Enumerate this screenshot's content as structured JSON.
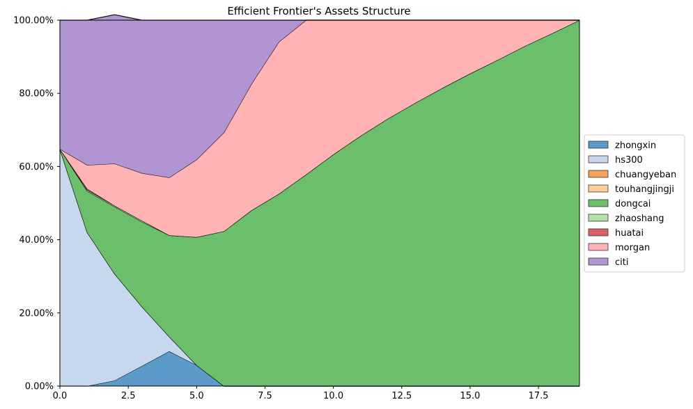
{
  "chart_data": {
    "type": "area",
    "stacked": true,
    "title": "Efficient Frontier's Assets Structure",
    "xlabel": "",
    "ylabel": "",
    "xlim": [
      0,
      19
    ],
    "ylim": [
      0,
      1
    ],
    "x_ticks": [
      0,
      2.5,
      5,
      7.5,
      10,
      12.5,
      15,
      17.5
    ],
    "x_tick_labels": [
      "0.0",
      "2.5",
      "5.0",
      "7.5",
      "10.0",
      "12.5",
      "15.0",
      "17.5"
    ],
    "y_ticks": [
      0,
      0.2,
      0.4,
      0.6,
      0.8,
      1.0
    ],
    "y_tick_labels": [
      "0.00%",
      "20.00%",
      "40.00%",
      "60.00%",
      "80.00%",
      "100.00%"
    ],
    "grid": true,
    "legend_position": "right",
    "x": [
      0,
      1,
      2,
      3,
      4,
      5,
      6,
      7,
      8,
      9,
      10,
      11,
      12,
      13,
      14,
      15,
      16,
      17,
      18,
      19
    ],
    "series": [
      {
        "name": "zhongxin",
        "color": "#5b9bc9",
        "values": [
          0,
          0,
          0.015,
          0.055,
          0.095,
          0.057,
          0,
          0,
          0,
          0,
          0,
          0,
          0,
          0,
          0,
          0,
          0,
          0,
          0,
          0
        ]
      },
      {
        "name": "hs300",
        "color": "#c6d7ee",
        "values": [
          0.648,
          0.42,
          0.292,
          0.162,
          0.04,
          0,
          0,
          0,
          0,
          0,
          0,
          0,
          0,
          0,
          0,
          0,
          0,
          0,
          0,
          0
        ]
      },
      {
        "name": "chuangyeban",
        "color": "#f5a35c",
        "values": [
          0,
          0,
          0,
          0,
          0,
          0,
          0,
          0,
          0,
          0,
          0,
          0,
          0,
          0,
          0,
          0,
          0,
          0,
          0,
          0
        ]
      },
      {
        "name": "touhangjingji",
        "color": "#fdcf9c",
        "values": [
          0,
          0,
          0,
          0,
          0,
          0,
          0,
          0,
          0,
          0,
          0,
          0,
          0,
          0,
          0,
          0,
          0,
          0,
          0,
          0
        ]
      },
      {
        "name": "dongcai",
        "color": "#6bbf6b",
        "values": [
          0,
          0.113,
          0.183,
          0.232,
          0.277,
          0.35,
          0.423,
          0.48,
          0.525,
          0.578,
          0.633,
          0.684,
          0.731,
          0.774,
          0.815,
          0.854,
          0.891,
          0.929,
          0.964,
          1.0
        ]
      },
      {
        "name": "zhaoshang",
        "color": "#b5e2a7",
        "values": [
          0,
          0.003,
          0.003,
          0.003,
          0,
          0,
          0,
          0,
          0,
          0,
          0,
          0,
          0,
          0,
          0,
          0,
          0,
          0,
          0,
          0
        ]
      },
      {
        "name": "huatai",
        "color": "#d96161",
        "values": [
          0,
          0.003,
          0,
          0,
          0,
          0,
          0,
          0,
          0,
          0,
          0,
          0,
          0,
          0,
          0,
          0,
          0,
          0,
          0,
          0
        ]
      },
      {
        "name": "morgan",
        "color": "#ffb3b5",
        "values": [
          0,
          0.065,
          0.115,
          0.13,
          0.158,
          0.212,
          0.27,
          0.345,
          0.415,
          0.422,
          0.367,
          0.316,
          0.269,
          0.226,
          0.185,
          0.146,
          0.109,
          0.071,
          0.036,
          0
        ]
      },
      {
        "name": "citi",
        "color": "#b194d2",
        "values": [
          0.352,
          0.396,
          0.407,
          0.418,
          0.43,
          0.381,
          0.307,
          0.175,
          0.06,
          0,
          0,
          0,
          0,
          0,
          0,
          0,
          0,
          0,
          0,
          0
        ]
      }
    ]
  }
}
